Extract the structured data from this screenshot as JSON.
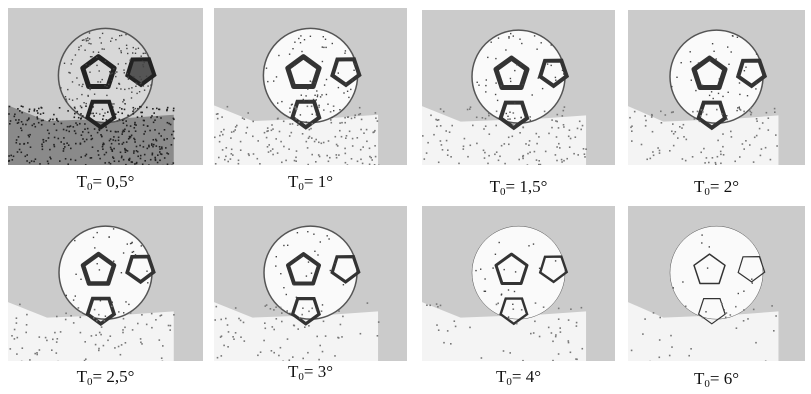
{
  "panels": [
    {
      "caption": {
        "base": "T",
        "sub": "0",
        "rest": "= 0,5°"
      }
    },
    {
      "caption": {
        "base": "T",
        "sub": "0",
        "rest": "= 1°"
      }
    },
    {
      "caption": {
        "base": "T",
        "sub": "0",
        "rest": "= 1,5°"
      }
    },
    {
      "caption": {
        "base": "T",
        "sub": "0",
        "rest": "= 2°"
      }
    },
    {
      "caption": {
        "base": "T",
        "sub": "0",
        "rest": "= 2,5°"
      }
    },
    {
      "caption": {
        "base": "T",
        "sub": "0",
        "rest": "= 3°"
      }
    },
    {
      "caption": {
        "base": "T",
        "sub": "0",
        "rest": "= 4°"
      }
    },
    {
      "caption": {
        "base": "T",
        "sub": "0",
        "rest": "= 6°"
      }
    }
  ]
}
